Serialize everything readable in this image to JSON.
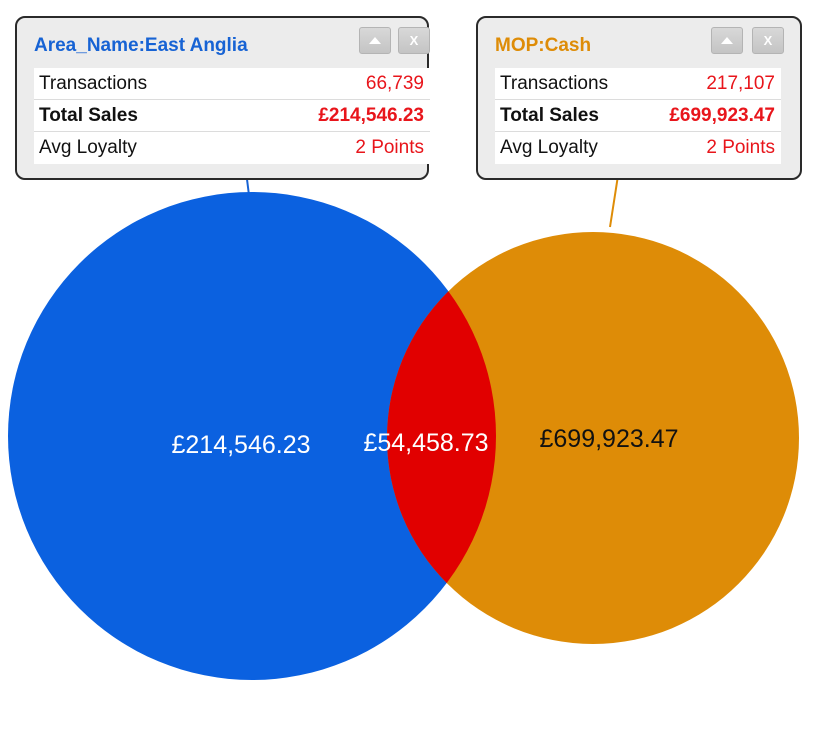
{
  "chart_data": {
    "type": "venn",
    "sets": [
      {
        "name": "Area_Name:East Anglia",
        "value_label": "£214,546.23",
        "color": "#0b61e0"
      },
      {
        "name": "MOP:Cash",
        "value_label": "£699,923.47",
        "color": "#de8c07"
      }
    ],
    "intersection": {
      "value_label": "£54,458.73",
      "color": "#e10000"
    }
  },
  "panels": [
    {
      "title": "Area_Name:East Anglia",
      "title_color": "#1763d4",
      "line_color": "#1763d4",
      "buttons": {
        "collapse_icon": "up-arrow-icon",
        "close_label": "X"
      },
      "rows": [
        {
          "label": "Transactions",
          "value": "66,739",
          "bold": false
        },
        {
          "label": "Total Sales",
          "value": "£214,546.23",
          "bold": true
        },
        {
          "label": "Avg Loyalty",
          "value": "2 Points",
          "bold": false
        }
      ]
    },
    {
      "title": "MOP:Cash",
      "title_color": "#de8c07",
      "line_color": "#de8c07",
      "buttons": {
        "collapse_icon": "up-arrow-icon",
        "close_label": "X"
      },
      "rows": [
        {
          "label": "Transactions",
          "value": "217,107",
          "bold": false
        },
        {
          "label": "Total Sales",
          "value": "£699,923.47",
          "bold": true
        },
        {
          "label": "Avg Loyalty",
          "value": "2 Points",
          "bold": false
        }
      ]
    }
  ]
}
